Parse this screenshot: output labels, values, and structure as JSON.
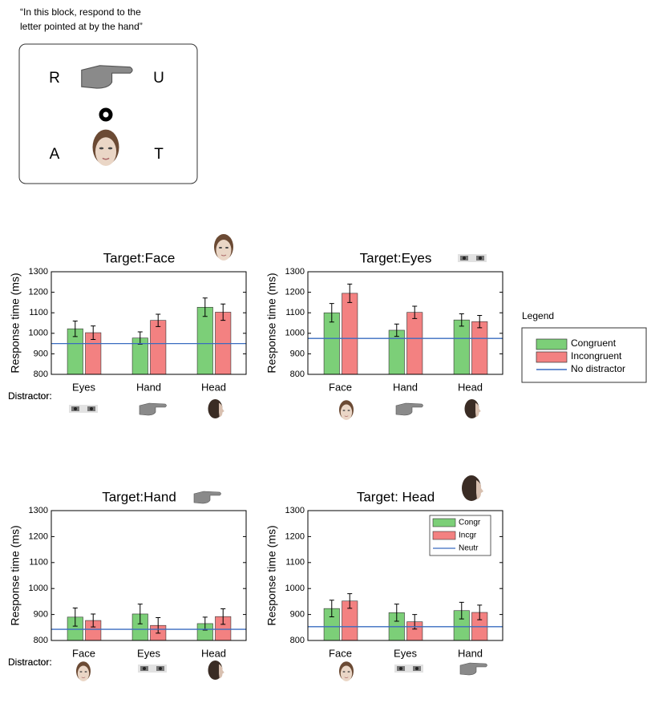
{
  "instruction": [
    "“In this block, respond to the",
    "letter pointed at by the hand”"
  ],
  "stimulus": {
    "letters": [
      "R",
      "U",
      "A",
      "T"
    ]
  },
  "legend": {
    "title": "Legend",
    "entries": [
      {
        "name": "Congruent",
        "color": "#7ccf78",
        "marker": "rect"
      },
      {
        "name": "Incongruent",
        "color": "#f38181",
        "marker": "rect"
      },
      {
        "name": "No distractor",
        "color": "#3a6cc0",
        "marker": "line"
      }
    ]
  },
  "chart_data": [
    {
      "type": "bar",
      "title": "Target:Face",
      "ylabel": "Response time (ms)",
      "xlabel": "Distractor:",
      "categories": [
        "Eyes",
        "Hand",
        "Head"
      ],
      "series": [
        {
          "color": "#7ccf78",
          "values": [
            1022,
            977,
            1127
          ],
          "errors": [
            38,
            30,
            45
          ]
        },
        {
          "color": "#f38181",
          "values": [
            1003,
            1063,
            1103
          ],
          "errors": [
            33,
            30,
            40
          ]
        }
      ],
      "baseline": {
        "value": 950,
        "color": "#3a6cc0"
      },
      "ylim": [
        800,
        1300
      ],
      "yticks": [
        800,
        900,
        1000,
        1100,
        1200,
        1300
      ]
    },
    {
      "type": "bar",
      "title": "Target:Eyes",
      "ylabel": "Response time (ms)",
      "xlabel": "Distractor:",
      "categories": [
        "Face",
        "Hand",
        "Head"
      ],
      "series": [
        {
          "color": "#7ccf78",
          "values": [
            1100,
            1015,
            1065
          ],
          "errors": [
            45,
            30,
            30
          ]
        },
        {
          "color": "#f38181",
          "values": [
            1195,
            1102,
            1057
          ],
          "errors": [
            45,
            30,
            30
          ]
        }
      ],
      "baseline": {
        "value": 975,
        "color": "#3a6cc0"
      },
      "ylim": [
        800,
        1300
      ],
      "yticks": [
        800,
        900,
        1000,
        1100,
        1200,
        1300
      ]
    },
    {
      "type": "bar",
      "title": "Target:Hand",
      "ylabel": "Response time (ms)",
      "xlabel": "Distractor:",
      "categories": [
        "Face",
        "Eyes",
        "Head"
      ],
      "series": [
        {
          "color": "#7ccf78",
          "values": [
            890,
            902,
            865
          ],
          "errors": [
            35,
            38,
            25
          ]
        },
        {
          "color": "#f38181",
          "values": [
            877,
            858,
            892
          ],
          "errors": [
            25,
            30,
            30
          ]
        }
      ],
      "baseline": {
        "value": 843,
        "color": "#3a6cc0"
      },
      "ylim": [
        800,
        1300
      ],
      "yticks": [
        800,
        900,
        1000,
        1100,
        1200,
        1300
      ]
    },
    {
      "type": "bar",
      "title": "Target: Head",
      "ylabel": "Response time (ms)",
      "xlabel": "Distractor:",
      "categories": [
        "Face",
        "Eyes",
        "Hand"
      ],
      "series": [
        {
          "name": "Congr",
          "color": "#7ccf78",
          "values": [
            923,
            907,
            915
          ],
          "errors": [
            32,
            33,
            32
          ]
        },
        {
          "name": "Incgr",
          "color": "#f38181",
          "values": [
            952,
            872,
            908
          ],
          "errors": [
            28,
            28,
            28
          ]
        }
      ],
      "baseline": {
        "name": "Neutr",
        "value": 853,
        "color": "#3a6cc0"
      },
      "legend": "upper right",
      "ylim": [
        800,
        1300
      ],
      "yticks": [
        800,
        900,
        1000,
        1100,
        1200,
        1300
      ]
    }
  ]
}
